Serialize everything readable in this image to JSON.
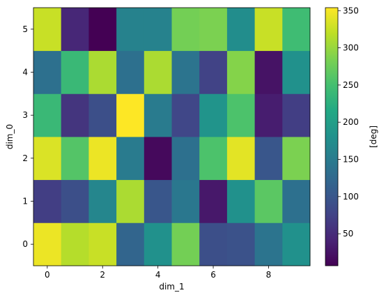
{
  "chart_data": {
    "type": "heatmap",
    "xlabel": "dim_1",
    "ylabel": "dim_0",
    "colorbar_label": "[deg]",
    "colormap": "viridis",
    "vmin": 7,
    "vmax": 354,
    "x": [
      0,
      1,
      2,
      3,
      4,
      5,
      6,
      7,
      8,
      9
    ],
    "y": [
      0,
      1,
      2,
      3,
      4,
      5
    ],
    "x_ticks": [
      0,
      2,
      4,
      6,
      8
    ],
    "y_ticks": [
      0,
      1,
      2,
      3,
      4,
      5
    ],
    "colorbar_ticks": [
      50,
      100,
      150,
      200,
      250,
      300,
      350
    ],
    "values": [
      [
        345,
        315,
        325,
        120,
        180,
        280,
        90,
        95,
        140,
        180
      ],
      [
        70,
        90,
        165,
        310,
        100,
        145,
        30,
        180,
        265,
        135
      ],
      [
        335,
        260,
        345,
        150,
        15,
        135,
        255,
        340,
        100,
        285
      ],
      [
        240,
        60,
        90,
        354,
        150,
        80,
        185,
        255,
        35,
        70
      ],
      [
        135,
        240,
        310,
        135,
        310,
        140,
        75,
        290,
        25,
        180
      ],
      [
        325,
        45,
        7,
        160,
        160,
        280,
        285,
        175,
        325,
        245
      ]
    ]
  }
}
